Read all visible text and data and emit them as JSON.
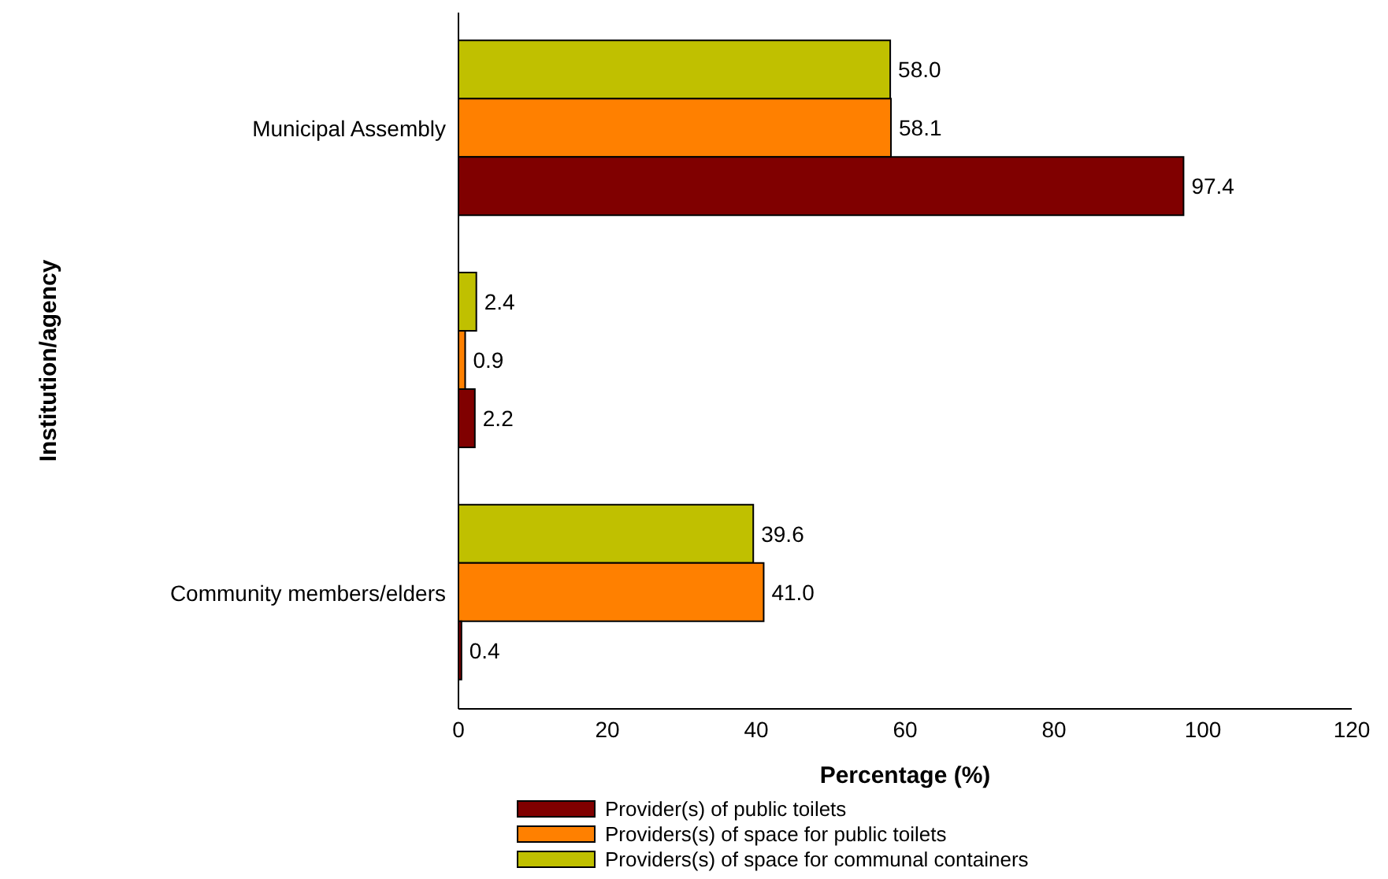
{
  "chart_data": {
    "type": "bar",
    "orientation": "horizontal",
    "xlabel": "Percentage (%)",
    "ylabel": "Institution/agency",
    "categories": [
      "Municipal Assembly",
      null,
      "Community members/elders"
    ],
    "series": [
      {
        "name": "Provider(s) of public toilets",
        "color": "#800000",
        "values": [
          97.4,
          2.2,
          0.4
        ],
        "value_labels": [
          "97.4",
          "2.2",
          "0.4"
        ]
      },
      {
        "name": "Providers(s) of space for public toilets",
        "color": "#ff8000",
        "values": [
          58.1,
          0.9,
          41.0
        ],
        "value_labels": [
          "58.1",
          "0.9",
          "41.0"
        ]
      },
      {
        "name": "Providers(s) of space for communal containers",
        "color": "#c0c000",
        "values": [
          58.0,
          2.4,
          39.6
        ],
        "value_labels": [
          "58.0",
          "2.4",
          "39.6"
        ]
      }
    ],
    "xlim": [
      0,
      120
    ],
    "xticks": [
      0,
      20,
      40,
      60,
      80,
      100,
      120
    ],
    "grid": false,
    "legend": "bottom"
  }
}
